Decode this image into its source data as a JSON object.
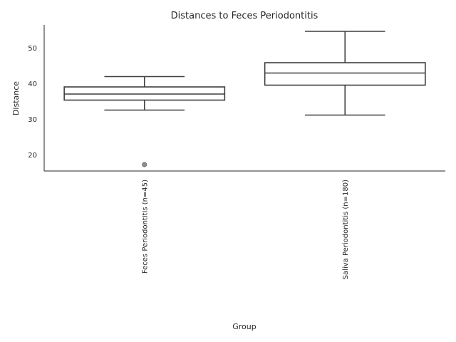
{
  "chart_data": {
    "type": "box",
    "title": "Distances to Feces Periodontitis",
    "xlabel": "Group",
    "ylabel": "Distance",
    "ylim": [
      15.5,
      56.5
    ],
    "yticks": [
      20,
      30,
      40,
      50
    ],
    "grid": false,
    "categories": [
      "Feces Periodontitis (n=45)",
      "Saliva Periodontitis (n=180)"
    ],
    "boxes": [
      {
        "name": "Feces Periodontitis (n=45)",
        "whisker_low": 32.6,
        "q1": 35.4,
        "median": 37.1,
        "q3": 39.1,
        "whisker_high": 42.0,
        "outliers": [
          17.3
        ]
      },
      {
        "name": "Saliva Periodontitis (n=180)",
        "whisker_low": 31.2,
        "q1": 39.6,
        "median": 43.0,
        "q3": 45.9,
        "whisker_high": 54.7,
        "outliers": []
      }
    ]
  }
}
